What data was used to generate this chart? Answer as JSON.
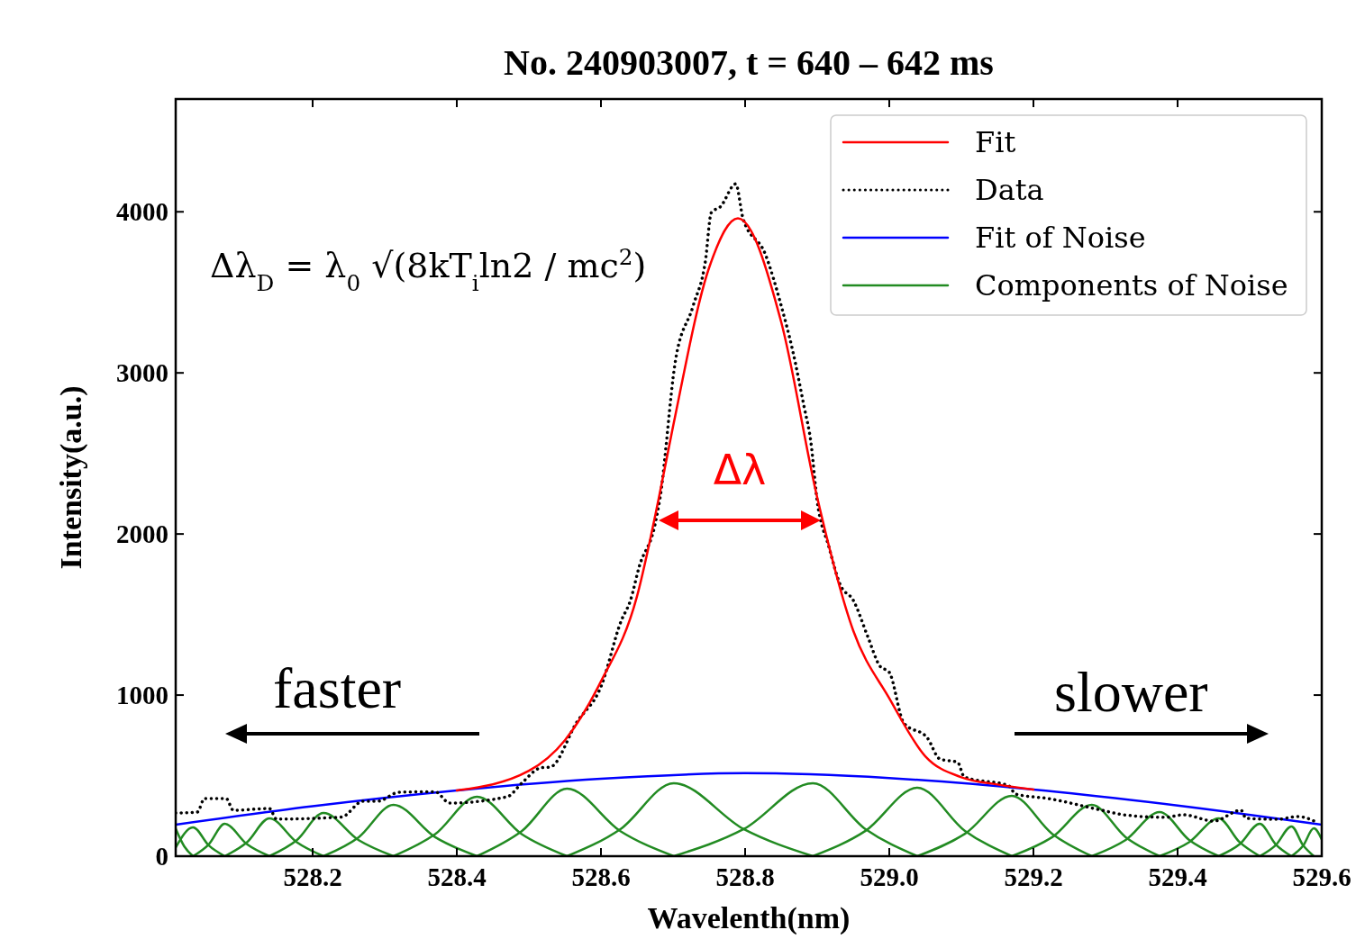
{
  "chart_data": {
    "type": "line",
    "title": "No. 240903007, t = 640 – 642 ms",
    "xlabel": "Wavelenth(nm)",
    "ylabel": "Intensity(a.u.)",
    "xlim": [
      528.01,
      529.6
    ],
    "xticks": [
      528.2,
      528.4,
      528.6,
      528.8,
      {
        "value": 529.0,
        "label": "529.0"
      },
      529.2,
      529.4,
      529.6
    ],
    "ylim": [
      0,
      4700
    ],
    "yticks": [
      0,
      1000,
      2000,
      3000,
      4000
    ],
    "grid": false,
    "legend": "top right",
    "annotations": [
      "Δλ$_{D}$ = λ$_{0}$ √(8kT$_{i}$ln2 / mc$^{2}$)",
      "Δλ",
      "faster",
      "slower"
    ],
    "series": [
      {
        "name": "Fit",
        "color": "#ff0000",
        "line_style": "solid",
        "x": [
          528.4,
          528.5,
          528.55,
          528.6,
          528.65,
          528.68,
          528.7,
          528.75,
          528.79,
          528.85,
          528.9,
          528.95,
          529.0,
          529.05,
          529.1,
          529.15,
          529.2
        ],
        "values": [
          408,
          530,
          720,
          1085,
          1613,
          2217,
          2667,
          3652,
          3960,
          3317,
          2227,
          1400,
          980,
          620,
          490,
          445,
          414
        ]
      },
      {
        "name": "Data",
        "color": "#000000",
        "line_style": "dotted",
        "x": [
          528.01,
          528.04,
          528.05,
          528.08,
          528.09,
          528.14,
          528.15,
          528.24,
          528.27,
          528.29,
          528.32,
          528.37,
          528.39,
          528.47,
          528.49,
          528.516,
          528.53,
          528.566,
          528.6,
          528.628,
          528.641,
          528.653,
          528.675,
          528.682,
          528.703,
          528.728,
          528.745,
          528.753,
          528.766,
          528.787,
          528.797,
          528.828,
          528.85,
          528.866,
          528.882,
          528.891,
          528.9,
          528.916,
          528.932,
          528.95,
          528.97,
          528.987,
          529.0,
          529.02,
          529.053,
          529.07,
          529.095,
          529.104,
          529.166,
          529.175,
          529.22,
          529.295,
          529.325,
          529.383,
          529.408,
          529.45,
          529.488,
          529.495,
          529.538,
          529.567,
          529.592
        ],
        "values": [
          268,
          274,
          358,
          358,
          285,
          296,
          230,
          243,
          341,
          341,
          397,
          400,
          330,
          369,
          453,
          548,
          554,
          828,
          1052,
          1460,
          1589,
          1796,
          2059,
          2226,
          3066,
          3418,
          3698,
          3994,
          4033,
          4173,
          3960,
          3737,
          3418,
          3138,
          2786,
          2579,
          2204,
          1924,
          1684,
          1589,
          1365,
          1180,
          1141,
          828,
          733,
          604,
          582,
          492,
          436,
          386,
          358,
          285,
          257,
          241,
          257,
          218,
          285,
          235,
          229,
          246,
          213
        ]
      },
      {
        "name": "Fit of Noise",
        "color": "#0000ff",
        "line_style": "solid",
        "x": [
          528.01,
          528.2,
          528.4,
          528.6,
          528.8,
          529.0,
          529.2,
          529.4,
          529.6
        ],
        "values": [
          196,
          310,
          408,
          480,
          515,
          485,
          414,
          315,
          196
        ]
      },
      {
        "name": "Components of Noise",
        "color": "#228b22",
        "line_style": "solid",
        "x": [
          528.01,
          528.022,
          528.034
        ],
        "values": [
          170,
          60,
          0
        ]
      },
      {
        "color": "#228b22",
        "line_style": "solid",
        "x": [
          528.01,
          528.034,
          528.056,
          528.078
        ],
        "values": [
          54,
          179,
          66,
          0
        ]
      },
      {
        "color": "#228b22",
        "line_style": "solid",
        "x": [
          528.034,
          528.056,
          528.078,
          528.109,
          528.14
        ],
        "values": [
          0,
          74,
          201,
          74,
          0
        ]
      },
      {
        "color": "#228b22",
        "line_style": "solid",
        "x": [
          528.078,
          528.109,
          528.14,
          528.178,
          528.215
        ],
        "values": [
          0,
          87,
          235,
          87,
          0
        ]
      },
      {
        "color": "#228b22",
        "line_style": "solid",
        "x": [
          528.14,
          528.178,
          528.215,
          528.264,
          528.312
        ],
        "values": [
          0,
          99,
          268,
          99,
          0
        ]
      },
      {
        "color": "#228b22",
        "line_style": "solid",
        "x": [
          528.215,
          528.264,
          528.312,
          528.37,
          528.428
        ],
        "values": [
          0,
          118,
          319,
          118,
          0
        ]
      },
      {
        "color": "#228b22",
        "line_style": "solid",
        "x": [
          528.312,
          528.37,
          528.428,
          528.49,
          528.553
        ],
        "values": [
          0,
          137,
          369,
          137,
          0
        ]
      },
      {
        "color": "#228b22",
        "line_style": "solid",
        "x": [
          528.428,
          528.49,
          528.553,
          528.627,
          528.701
        ],
        "values": [
          0,
          155,
          419,
          155,
          0
        ]
      },
      {
        "color": "#228b22",
        "line_style": "solid",
        "x": [
          528.553,
          528.627,
          528.701,
          528.798,
          528.894
        ],
        "values": [
          0,
          168,
          453,
          168,
          0
        ]
      },
      {
        "color": "#228b22",
        "line_style": "solid",
        "x": [
          528.701,
          528.798,
          528.894,
          528.967,
          529.039
        ],
        "values": [
          0,
          168,
          453,
          168,
          0
        ]
      },
      {
        "color": "#228b22",
        "line_style": "solid",
        "x": [
          528.894,
          528.967,
          529.039,
          529.105,
          529.17
        ],
        "values": [
          0,
          157,
          425,
          157,
          0
        ]
      },
      {
        "color": "#228b22",
        "line_style": "solid",
        "x": [
          529.039,
          529.105,
          529.17,
          529.226,
          529.281
        ],
        "values": [
          0,
          139,
          375,
          139,
          0
        ]
      },
      {
        "color": "#228b22",
        "line_style": "solid",
        "x": [
          529.17,
          529.226,
          529.281,
          529.328,
          529.375
        ],
        "values": [
          0,
          118,
          319,
          118,
          0
        ]
      },
      {
        "color": "#228b22",
        "line_style": "solid",
        "x": [
          529.281,
          529.328,
          529.375,
          529.416,
          529.457
        ],
        "values": [
          0,
          101,
          274,
          101,
          0
        ]
      },
      {
        "color": "#228b22",
        "line_style": "solid",
        "x": [
          529.375,
          529.416,
          529.457,
          529.486,
          529.514
        ],
        "values": [
          0,
          87,
          235,
          87,
          0
        ]
      },
      {
        "color": "#228b22",
        "line_style": "solid",
        "x": [
          529.457,
          529.486,
          529.514,
          529.536,
          529.558
        ],
        "values": [
          0,
          74,
          201,
          74,
          0
        ]
      },
      {
        "color": "#228b22",
        "line_style": "solid",
        "x": [
          529.514,
          529.536,
          529.558,
          529.574,
          529.589
        ],
        "values": [
          0,
          68,
          185,
          68,
          0
        ]
      },
      {
        "color": "#228b22",
        "line_style": "solid",
        "x": [
          529.558,
          529.574,
          529.589,
          529.6
        ],
        "values": [
          0,
          64,
          173,
          104
        ]
      }
    ]
  }
}
